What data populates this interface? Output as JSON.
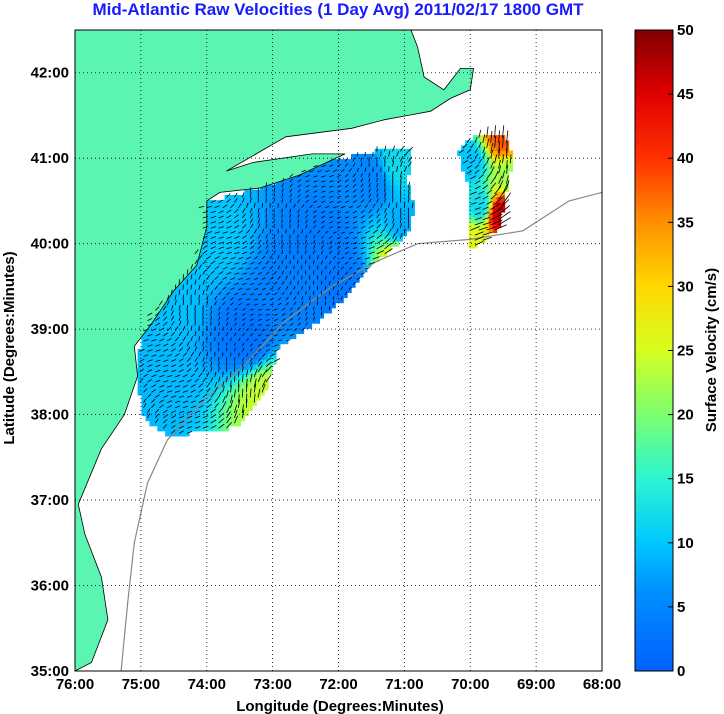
{
  "chart_data": {
    "type": "heatmap",
    "title": "Mid-Atlantic Raw Velocities (1 Day Avg) 2011/02/17 1800 GMT",
    "xlabel": "Longitude (Degrees:Minutes)",
    "ylabel": "Latitude (Degrees:Minutes)",
    "xlim": [
      -76,
      -68
    ],
    "ylim": [
      35,
      42.5
    ],
    "x_ticks": [
      {
        "value": -76,
        "label": "76:00"
      },
      {
        "value": -75,
        "label": "75:00"
      },
      {
        "value": -74,
        "label": "74:00"
      },
      {
        "value": -73,
        "label": "73:00"
      },
      {
        "value": -72,
        "label": "72:00"
      },
      {
        "value": -71,
        "label": "71:00"
      },
      {
        "value": -70,
        "label": "70:00"
      },
      {
        "value": -69,
        "label": "69:00"
      },
      {
        "value": -68,
        "label": "68:00"
      }
    ],
    "y_ticks": [
      {
        "value": 35,
        "label": "35:00"
      },
      {
        "value": 36,
        "label": "36:00"
      },
      {
        "value": 37,
        "label": "37:00"
      },
      {
        "value": 38,
        "label": "38:00"
      },
      {
        "value": 39,
        "label": "39:00"
      },
      {
        "value": 40,
        "label": "40:00"
      },
      {
        "value": 41,
        "label": "41:00"
      },
      {
        "value": 42,
        "label": "42:00"
      }
    ],
    "grid": true,
    "colorbar": {
      "label": "Surface Velocity (cm/s)",
      "min": 0,
      "max": 50,
      "ticks": [
        {
          "value": 0,
          "label": "0"
        },
        {
          "value": 5,
          "label": "5"
        },
        {
          "value": 10,
          "label": "10"
        },
        {
          "value": 15,
          "label": "15"
        },
        {
          "value": 20,
          "label": "20"
        },
        {
          "value": 25,
          "label": "25"
        },
        {
          "value": 30,
          "label": "30"
        },
        {
          "value": 35,
          "label": "35"
        },
        {
          "value": 40,
          "label": "40"
        },
        {
          "value": 45,
          "label": "45"
        },
        {
          "value": 50,
          "label": "50"
        }
      ],
      "colormap": "jet"
    },
    "colors": {
      "land": "#5af5b1",
      "title": "#1a1aff",
      "grid": "#000000",
      "bathymetry": "#888888",
      "vectors": "#000000"
    },
    "velocity_field": {
      "regions": [
        {
          "name": "mid-atlantic",
          "outline": [
            [
              -74.15,
              40.45
            ],
            [
              -73.0,
              40.7
            ],
            [
              -72.3,
              40.95
            ],
            [
              -71.3,
              41.1
            ],
            [
              -70.9,
              41.1
            ],
            [
              -70.95,
              40.7
            ],
            [
              -70.85,
              40.45
            ],
            [
              -70.95,
              40.1
            ],
            [
              -71.5,
              39.75
            ],
            [
              -71.85,
              39.4
            ],
            [
              -72.3,
              39.1
            ],
            [
              -72.9,
              38.8
            ],
            [
              -73.1,
              38.3
            ],
            [
              -73.55,
              37.85
            ],
            [
              -74.6,
              37.75
            ],
            [
              -75.0,
              38.0
            ],
            [
              -75.05,
              38.6
            ],
            [
              -74.95,
              39.15
            ],
            [
              -74.45,
              39.55
            ],
            [
              -74.1,
              40.0
            ]
          ],
          "seeds": [
            {
              "lon": -73.4,
              "lat": 38.9,
              "speed": 2.5
            },
            {
              "lon": -72.2,
              "lat": 40.0,
              "speed": 3.5
            },
            {
              "lon": -71.5,
              "lat": 40.75,
              "speed": 5.0
            },
            {
              "lon": -73.9,
              "lat": 40.1,
              "speed": 10.0
            },
            {
              "lon": -74.6,
              "lat": 39.3,
              "speed": 9.5
            },
            {
              "lon": -74.7,
              "lat": 38.3,
              "speed": 9.0
            },
            {
              "lon": -72.7,
              "lat": 39.5,
              "speed": 4.0
            },
            {
              "lon": -71.0,
              "lat": 40.2,
              "speed": 8.0
            },
            {
              "lon": -71.1,
              "lat": 40.95,
              "speed": 12.0
            },
            {
              "lon": -73.1,
              "lat": 38.2,
              "speed": 24.0
            },
            {
              "lon": -71.0,
              "lat": 39.8,
              "speed": 32.0
            },
            {
              "lon": -72.0,
              "lat": 39.6,
              "speed": 3.0
            }
          ]
        },
        {
          "name": "nantucket",
          "outline": [
            [
              -70.2,
              41.1
            ],
            [
              -69.85,
              41.3
            ],
            [
              -69.5,
              41.3
            ],
            [
              -69.35,
              41.0
            ],
            [
              -69.55,
              40.2
            ],
            [
              -69.85,
              40.0
            ],
            [
              -70.05,
              39.95
            ],
            [
              -70.0,
              40.6
            ]
          ],
          "seeds": [
            {
              "lon": -70.0,
              "lat": 40.95,
              "speed": 10.0
            },
            {
              "lon": -69.85,
              "lat": 40.45,
              "speed": 12.0
            },
            {
              "lon": -69.55,
              "lat": 40.35,
              "speed": 46.0
            },
            {
              "lon": -69.5,
              "lat": 41.25,
              "speed": 38.0
            },
            {
              "lon": -69.95,
              "lat": 40.05,
              "speed": 26.0
            },
            {
              "lon": -69.4,
              "lat": 40.8,
              "speed": 22.0
            }
          ]
        }
      ]
    },
    "coastline": [
      [
        -75.75,
        35.1
      ],
      [
        -75.5,
        35.6
      ],
      [
        -75.6,
        36.1
      ],
      [
        -75.85,
        36.6
      ],
      [
        -75.95,
        36.95
      ],
      [
        -75.6,
        37.6
      ],
      [
        -75.25,
        38.0
      ],
      [
        -75.05,
        38.45
      ],
      [
        -75.1,
        38.8
      ],
      [
        -74.85,
        39.05
      ],
      [
        -74.5,
        39.45
      ],
      [
        -74.15,
        39.75
      ],
      [
        -74.0,
        40.2
      ],
      [
        -74.0,
        40.5
      ],
      [
        -73.8,
        40.6
      ],
      [
        -73.2,
        40.65
      ],
      [
        -72.6,
        40.8
      ],
      [
        -71.9,
        41.05
      ],
      [
        -72.4,
        41.05
      ],
      [
        -73.3,
        40.95
      ],
      [
        -73.7,
        40.85
      ],
      [
        -72.8,
        41.25
      ],
      [
        -71.8,
        41.35
      ],
      [
        -71.3,
        41.45
      ],
      [
        -70.95,
        41.5
      ],
      [
        -70.6,
        41.55
      ],
      [
        -70.3,
        41.7
      ],
      [
        -70.0,
        41.8
      ],
      [
        -69.95,
        42.05
      ],
      [
        -70.15,
        42.05
      ],
      [
        -70.4,
        41.8
      ],
      [
        -70.7,
        41.95
      ],
      [
        -70.8,
        42.3
      ],
      [
        -70.9,
        42.5
      ]
    ]
  }
}
